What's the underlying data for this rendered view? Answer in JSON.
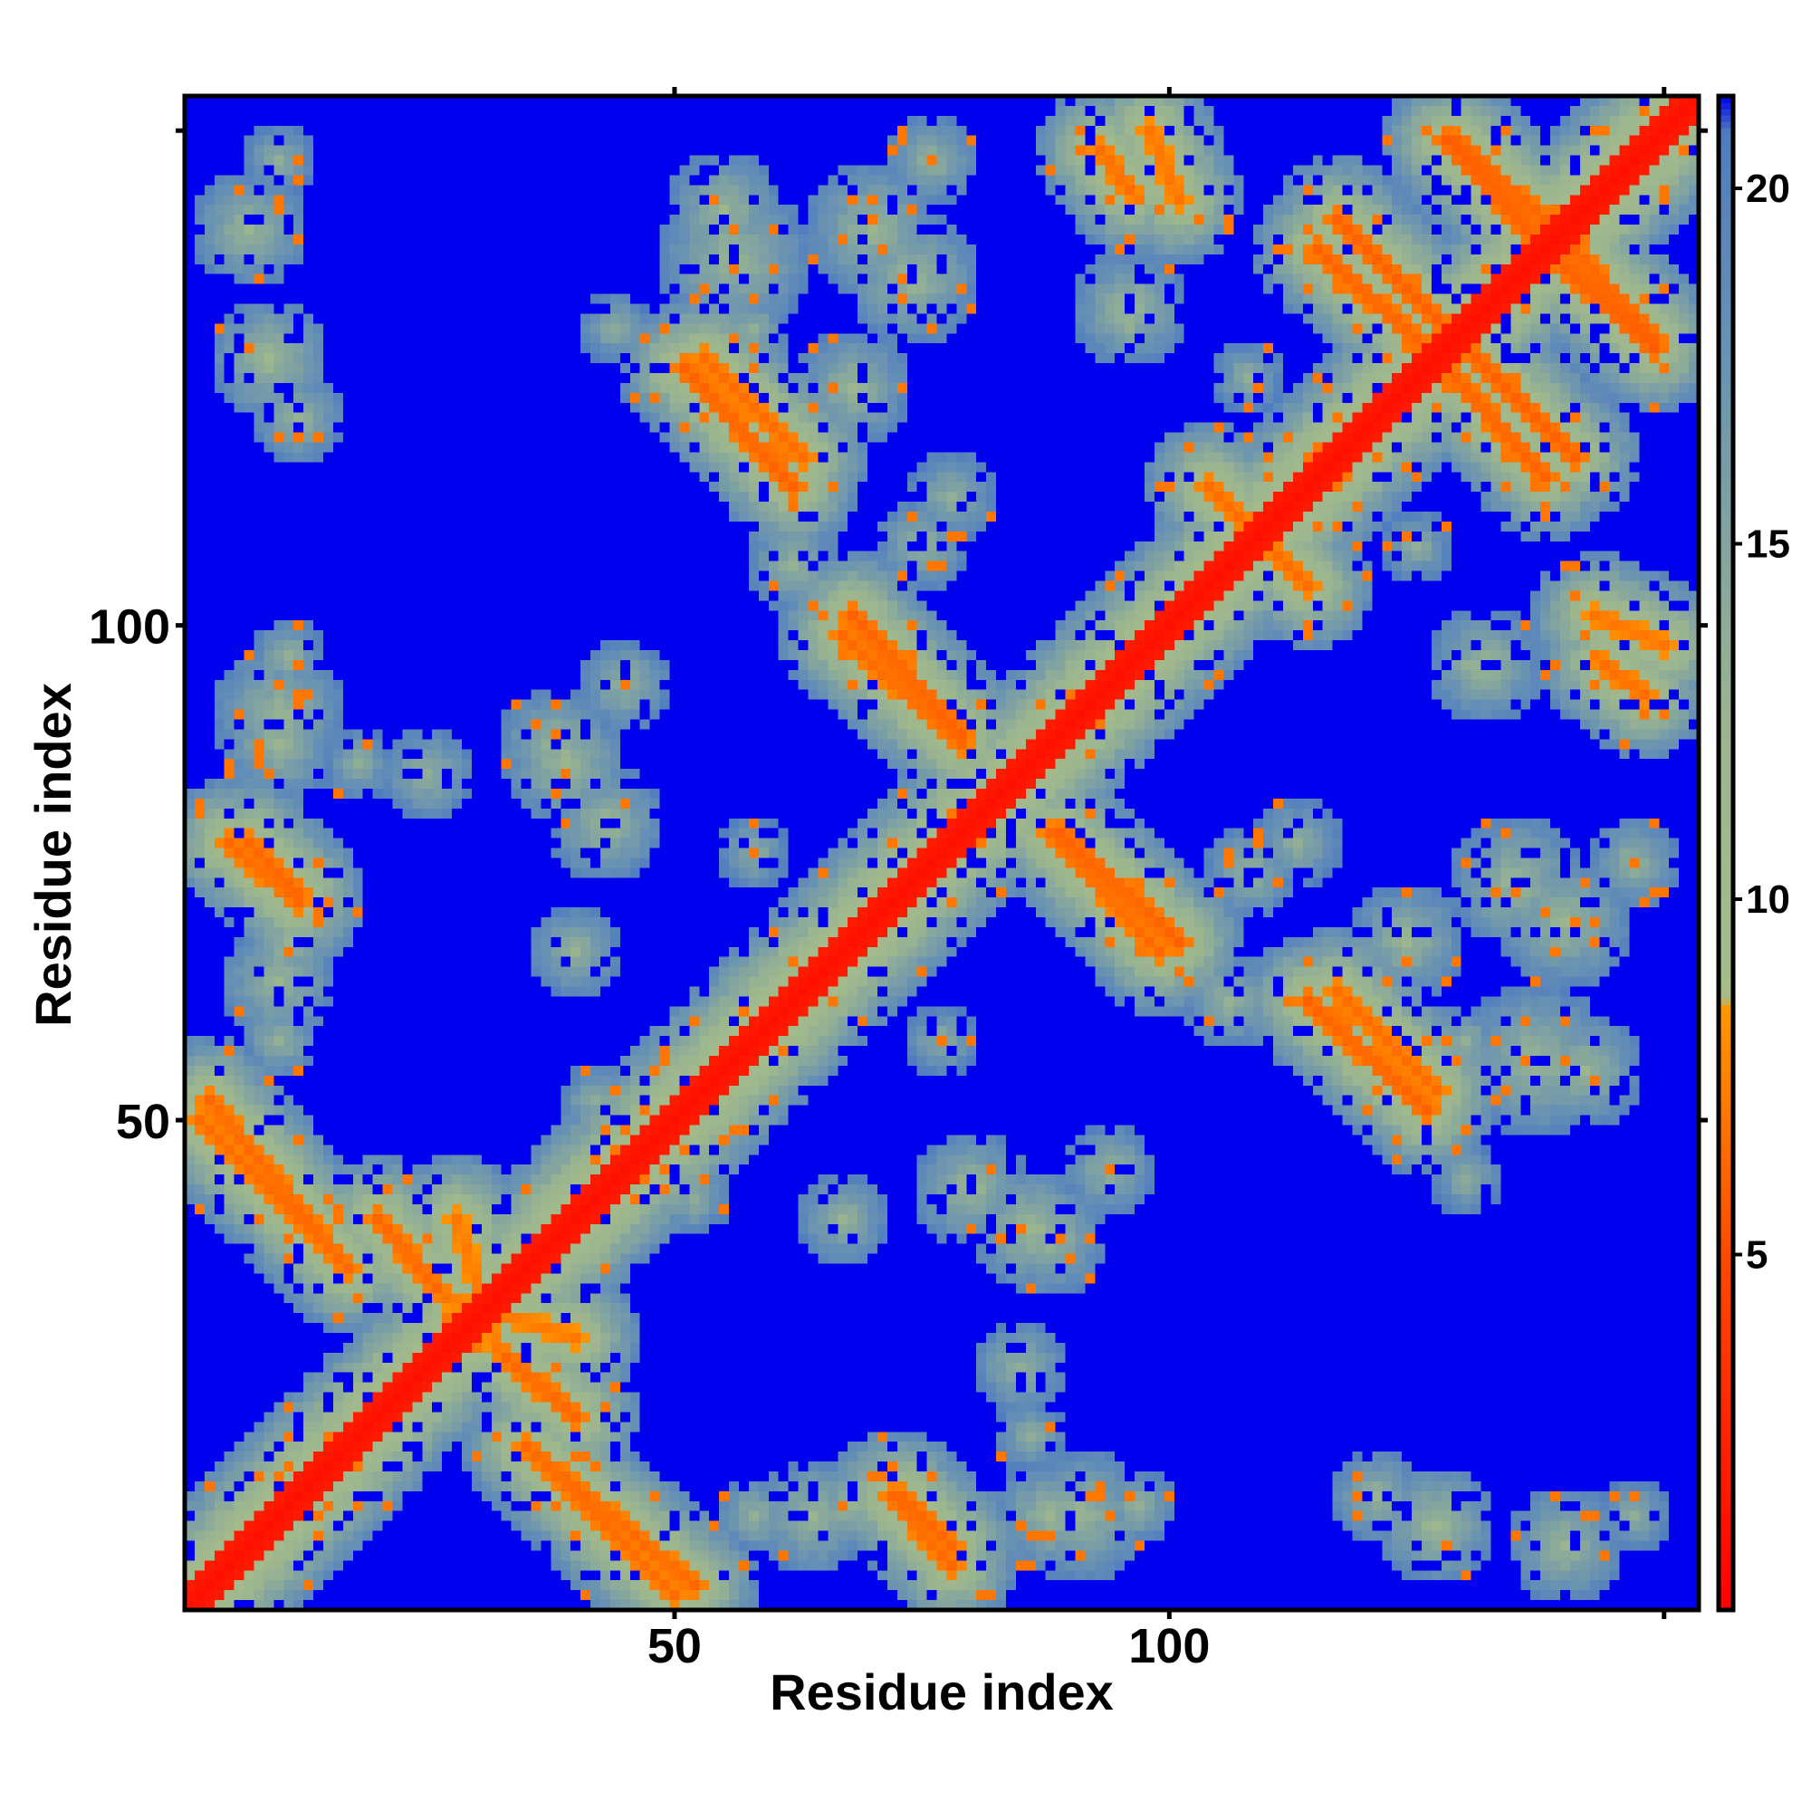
{
  "chart_data": {
    "type": "heatmap",
    "description_kind": "residue contact / distance map",
    "xlabel": "Residue index",
    "ylabel": "Residue index",
    "xlim": [
      1,
      153
    ],
    "ylim": [
      1,
      153
    ],
    "x_ticks": [
      50,
      100
    ],
    "y_ticks": [
      50,
      100
    ],
    "colorbar": {
      "ticks": [
        5,
        10,
        15,
        20
      ],
      "range": [
        0,
        21.3
      ],
      "colormap": [
        {
          "at": 0,
          "color": "#ff0000"
        },
        {
          "at": 5,
          "color": "#ff4a00"
        },
        {
          "at": 8.5,
          "color": "#ff9900"
        },
        {
          "at": 8.6,
          "color": "#a7bc8a"
        },
        {
          "at": 12.5,
          "color": "#9bb58f"
        },
        {
          "at": 18,
          "color": "#6690b4"
        },
        {
          "at": 20.8,
          "color": "#4f7cc0"
        },
        {
          "at": 21.3,
          "color": "#0000ee"
        }
      ]
    },
    "background_color": "#0000ee",
    "diagonal_band": {
      "value": 1.0,
      "half_width_residues": 1.6
    },
    "contact_bands": [
      {
        "from": [
          2,
          50
        ],
        "to": [
          17,
          35
        ],
        "value": 6.5
      },
      {
        "from": [
          7,
          78
        ],
        "to": [
          12,
          73
        ],
        "value": 6.3
      },
      {
        "from": [
          33,
          26
        ],
        "to": [
          40,
          20
        ],
        "value": 6.2
      },
      {
        "from": [
          27,
          32
        ],
        "to": [
          40,
          28
        ],
        "value": 7.0
      },
      {
        "from": [
          35,
          17
        ],
        "to": [
          52,
          3
        ],
        "value": 6.3
      },
      {
        "from": [
          72,
          12
        ],
        "to": [
          78,
          5
        ],
        "value": 6.3
      },
      {
        "from": [
          51,
          126
        ],
        "to": [
          62,
          114
        ],
        "value": 6.0
      },
      {
        "from": [
          67,
          99
        ],
        "to": [
          79,
          88
        ],
        "value": 6.3
      },
      {
        "from": [
          89,
          79
        ],
        "to": [
          101,
          68
        ],
        "value": 6.0
      },
      {
        "from": [
          104,
          114
        ],
        "to": [
          112,
          106
        ],
        "value": 6.5
      },
      {
        "from": [
          117,
          141
        ],
        "to": [
          128,
          130
        ],
        "value": 6.0
      },
      {
        "from": [
          128,
          149
        ],
        "to": [
          139,
          137
        ],
        "value": 5.8
      },
      {
        "from": [
          127,
          127
        ],
        "to": [
          138,
          115
        ],
        "value": 6.0
      },
      {
        "from": [
          138,
          141
        ],
        "to": [
          149,
          129
        ],
        "value": 6.0
      },
      {
        "from": [
          117,
          63
        ],
        "to": [
          127,
          53
        ],
        "value": 6.5
      },
      {
        "from": [
          93,
          148
        ],
        "to": [
          96,
          144
        ],
        "value": 6.5
      },
      {
        "from": [
          143,
          101
        ],
        "to": [
          150,
          98
        ],
        "value": 6.8
      }
    ],
    "contact_blobs": [
      {
        "center": [
          7,
          140
        ],
        "radius": 6,
        "value": 12.5
      },
      {
        "center": [
          9,
          127
        ],
        "radius": 6,
        "value": 12.0
      },
      {
        "center": [
          10,
          91
        ],
        "radius": 7,
        "value": 12.5
      },
      {
        "center": [
          10,
          64
        ],
        "radius": 6,
        "value": 12.5
      },
      {
        "center": [
          18,
          86
        ],
        "radius": 4,
        "value": 13.5
      },
      {
        "center": [
          38,
          88
        ],
        "radius": 6,
        "value": 12.5
      },
      {
        "center": [
          40,
          67
        ],
        "radius": 5,
        "value": 13.0
      },
      {
        "center": [
          32,
          32
        ],
        "radius": 9,
        "value": 11.0
      },
      {
        "center": [
          56,
          137
        ],
        "radius": 8,
        "value": 12.5
      },
      {
        "center": [
          44,
          130
        ],
        "radius": 4,
        "value": 13.5
      },
      {
        "center": [
          70,
          140
        ],
        "radius": 7,
        "value": 12.5
      },
      {
        "center": [
          68,
          124
        ],
        "radius": 6,
        "value": 12.5
      },
      {
        "center": [
          62,
          106
        ],
        "radius": 5,
        "value": 13.0
      },
      {
        "center": [
          58,
          77
        ],
        "radius": 4,
        "value": 13.5
      },
      {
        "center": [
          75,
          108
        ],
        "radius": 5,
        "value": 13.0
      },
      {
        "center": [
          80,
          43
        ],
        "radius": 6,
        "value": 12.5
      },
      {
        "center": [
          86,
          39
        ],
        "radius": 6,
        "value": 12.0
      },
      {
        "center": [
          85,
          25
        ],
        "radius": 5,
        "value": 13.0
      },
      {
        "center": [
          52,
          42
        ],
        "radius": 4,
        "value": 13.5
      },
      {
        "center": [
          94,
          45
        ],
        "radius": 5,
        "value": 13.0
      },
      {
        "center": [
          58,
          10
        ],
        "radius": 4,
        "value": 13.0
      },
      {
        "center": [
          68,
          11
        ],
        "radius": 5,
        "value": 12.5
      },
      {
        "center": [
          88,
          10
        ],
        "radius": 6,
        "value": 12.5
      },
      {
        "center": [
          97,
          11
        ],
        "radius": 4,
        "value": 13.0
      },
      {
        "center": [
          96,
          132
        ],
        "radius": 6,
        "value": 12.5
      },
      {
        "center": [
          99,
          143
        ],
        "radius": 5,
        "value": 13.0
      },
      {
        "center": [
          108,
          125
        ],
        "radius": 4,
        "value": 13.5
      },
      {
        "center": [
          120,
          117
        ],
        "radius": 5,
        "value": 13.0
      },
      {
        "center": [
          134,
          117
        ],
        "radius": 5,
        "value": 13.0
      },
      {
        "center": [
          130,
          96
        ],
        "radius": 4,
        "value": 13.5
      },
      {
        "center": [
          113,
          78
        ],
        "radius": 5,
        "value": 13.5
      },
      {
        "center": [
          135,
          74
        ],
        "radius": 7,
        "value": 12.5
      },
      {
        "center": [
          147,
          76
        ],
        "radius": 5,
        "value": 13.0
      },
      {
        "center": [
          142,
          55
        ],
        "radius": 6,
        "value": 12.5
      },
      {
        "center": [
          130,
          58
        ],
        "radius": 4,
        "value": 13.5
      },
      {
        "center": [
          125,
          48
        ],
        "radius": 4,
        "value": 13.5
      },
      {
        "center": [
          121,
          12
        ],
        "radius": 5,
        "value": 13.0
      },
      {
        "center": [
          127,
          9
        ],
        "radius": 5,
        "value": 13.0
      },
      {
        "center": [
          147,
          10
        ],
        "radius": 4,
        "value": 13.5
      },
      {
        "center": [
          106,
          62
        ],
        "radius": 4,
        "value": 13.5
      }
    ]
  }
}
